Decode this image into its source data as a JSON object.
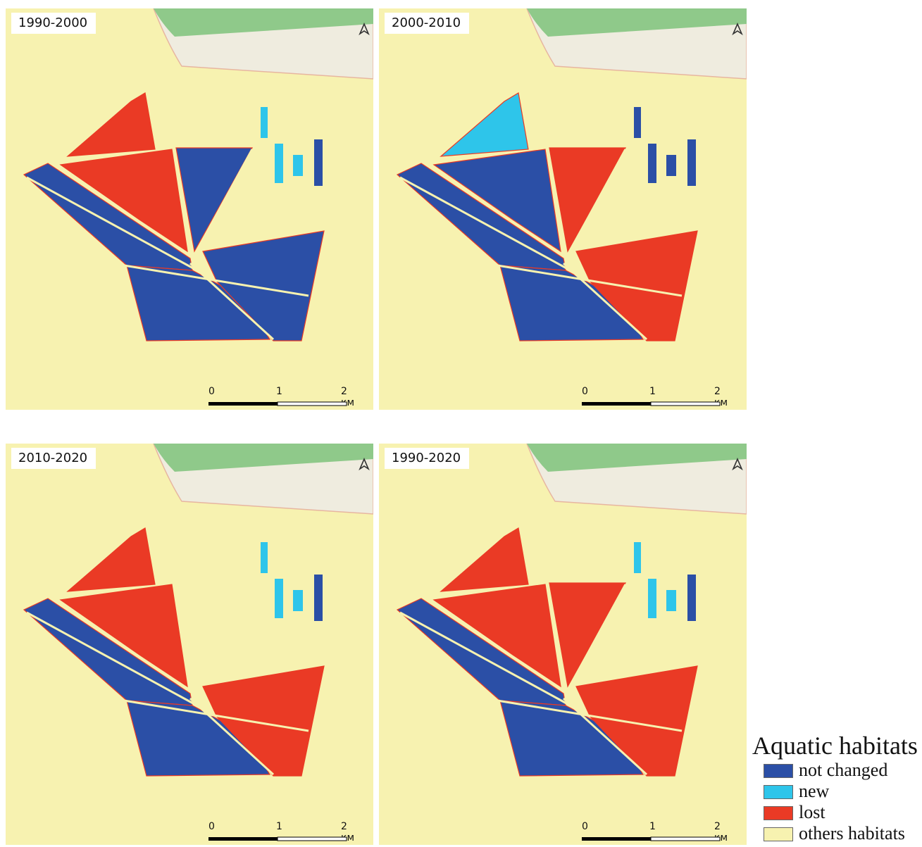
{
  "colors": {
    "not_changed": "#2b4fa6",
    "new": "#2ec5ea",
    "lost": "#ea3a25",
    "others": "#f7f2b0",
    "forest": "#8fc98a",
    "bare": "#efecdf"
  },
  "north_arrow_icon": "north-arrow-icon",
  "panels": [
    {
      "period": "1990-2000",
      "scale": {
        "ticks": [
          "0",
          "1",
          "2 км"
        ]
      },
      "classes": {
        "mainland_nw": "not_changed",
        "mainland_se": "not_changed",
        "north_wedge": "not_changed",
        "east_wedge": "not_changed",
        "far_north": "lost",
        "north_triangle": "lost"
      }
    },
    {
      "period": "2000-2010",
      "scale": {
        "ticks": [
          "0",
          "1",
          "2 км"
        ]
      },
      "classes": {
        "mainland_nw": "not_changed",
        "mainland_se": "not_changed",
        "north_wedge": "lost",
        "east_wedge": "lost",
        "far_north": "new",
        "north_triangle": "not_changed"
      }
    },
    {
      "period": "2010-2020",
      "scale": {
        "ticks": [
          "0",
          "1",
          "2 км"
        ]
      },
      "classes": {
        "mainland_nw": "not_changed",
        "mainland_se": "not_changed",
        "north_wedge": "others",
        "east_wedge": "lost",
        "far_north": "lost",
        "north_triangle": "lost"
      }
    },
    {
      "period": "1990-2020",
      "scale": {
        "ticks": [
          "0",
          "1",
          "2 км"
        ]
      },
      "classes": {
        "mainland_nw": "not_changed",
        "mainland_se": "not_changed",
        "north_wedge": "lost",
        "east_wedge": "lost",
        "far_north": "lost",
        "north_triangle": "lost"
      }
    }
  ],
  "legend": {
    "title": "Aquatic habitats",
    "items": [
      {
        "key": "not_changed",
        "label": "not changed"
      },
      {
        "key": "new",
        "label": "new"
      },
      {
        "key": "lost",
        "label": "lost"
      },
      {
        "key": "others",
        "label": "others habitats"
      }
    ]
  }
}
